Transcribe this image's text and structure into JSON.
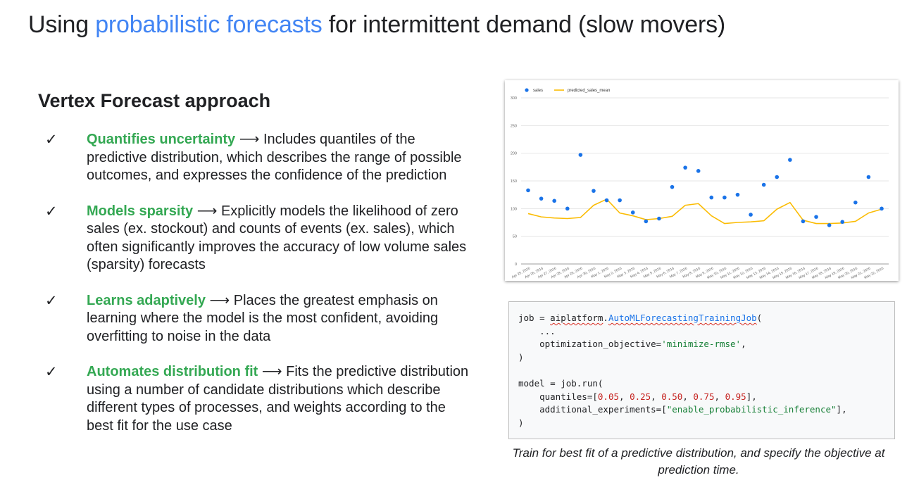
{
  "title": {
    "prefix": "Using ",
    "accent": "probabilistic forecasts",
    "suffix": " for intermittent demand (slow movers)"
  },
  "subheading": "Vertex Forecast approach",
  "bullets": [
    {
      "lead": "Quantifies uncertainty",
      "arrow": " ⟶ ",
      "text": "Includes quantiles of the predictive distribution, which describes the range of possible outcomes, and expresses the confidence of the prediction"
    },
    {
      "lead": "Models sparsity",
      "arrow": " ⟶ ",
      "text": "Explicitly models the likelihood of zero sales (ex. stockout) and counts of events (ex. sales), which often significantly improves the accuracy of low volume sales (sparsity) forecasts"
    },
    {
      "lead": "Learns adaptively",
      "arrow": " ⟶ ",
      "text": "Places the greatest emphasis on learning where the model is the most  confident, avoiding overfitting to noise in the data"
    },
    {
      "lead": "Automates distribution fit",
      "arrow": " ⟶ ",
      "text": "Fits the predictive distribution using a number of candidate distributions which describe different types of processes, and weights according to the best fit for the use case"
    }
  ],
  "check_icon": "check-icon",
  "chart_data": {
    "type": "line",
    "title": "",
    "xlabel": "",
    "ylabel": "",
    "legend_position": "top-left",
    "ylim": [
      0,
      300
    ],
    "yticks": [
      0,
      50,
      100,
      150,
      200,
      250,
      300
    ],
    "grid": true,
    "categories": [
      "Apr 25, 2016",
      "Apr 26, 2016",
      "Apr 27, 2016",
      "Apr 28, 2016",
      "Apr 29, 2016",
      "Apr 30, 2016",
      "May 1, 2016",
      "May 2, 2016",
      "May 3, 2016",
      "May 4, 2016",
      "May 5, 2016",
      "May 6, 2016",
      "May 7, 2016",
      "May 8, 2016",
      "May 9, 2016",
      "May 10, 2016",
      "May 11, 2016",
      "May 12, 2016",
      "May 13, 2016",
      "May 14, 2016",
      "May 15, 2016",
      "May 16, 2016",
      "May 17, 2016",
      "May 18, 2016",
      "May 19, 2016",
      "May 20, 2016",
      "May 21, 2016",
      "May 22, 2016"
    ],
    "series": [
      {
        "name": "sales",
        "style": "scatter",
        "color": "#1a73e8",
        "values": [
          133,
          118,
          114,
          100,
          197,
          132,
          115,
          115,
          93,
          77,
          82,
          139,
          174,
          168,
          120,
          120,
          125,
          89,
          143,
          157,
          188,
          77,
          85,
          70,
          76,
          111,
          157,
          100
        ]
      },
      {
        "name": "predicted_sales_mean",
        "style": "line",
        "color": "#fbbc04",
        "values": [
          91,
          85,
          83,
          82,
          84,
          106,
          117,
          92,
          87,
          80,
          82,
          86,
          106,
          109,
          87,
          73,
          75,
          76,
          78,
          99,
          111,
          79,
          73,
          73,
          74,
          77,
          92,
          99
        ]
      }
    ]
  },
  "code": {
    "lines": [
      [
        {
          "t": "job = "
        },
        {
          "t": "aiplatform",
          "c": "squig"
        },
        {
          "t": "."
        },
        {
          "t": "AutoMLForecastingTrainingJob",
          "c": "fn squig"
        },
        {
          "t": "("
        }
      ],
      [
        {
          "t": "    ..."
        }
      ],
      [
        {
          "t": "    optimization_objective="
        },
        {
          "t": "'minimize-rmse'",
          "c": "str"
        },
        {
          "t": ","
        }
      ],
      [
        {
          "t": ")"
        }
      ],
      [
        {
          "t": ""
        }
      ],
      [
        {
          "t": "model = job.run("
        }
      ],
      [
        {
          "t": "    quantiles=["
        },
        {
          "t": "0.05",
          "c": "num"
        },
        {
          "t": ", "
        },
        {
          "t": "0.25",
          "c": "num"
        },
        {
          "t": ", "
        },
        {
          "t": "0.50",
          "c": "num"
        },
        {
          "t": ", "
        },
        {
          "t": "0.75",
          "c": "num"
        },
        {
          "t": ", "
        },
        {
          "t": "0.95",
          "c": "num"
        },
        {
          "t": "],"
        }
      ],
      [
        {
          "t": "    additional_experiments=["
        },
        {
          "t": "\"enable_probabilistic_inference\"",
          "c": "str"
        },
        {
          "t": "],"
        }
      ],
      [
        {
          "t": ")"
        }
      ]
    ]
  },
  "caption": "Train for best fit of a predictive distribution, and specify the objective at prediction time."
}
